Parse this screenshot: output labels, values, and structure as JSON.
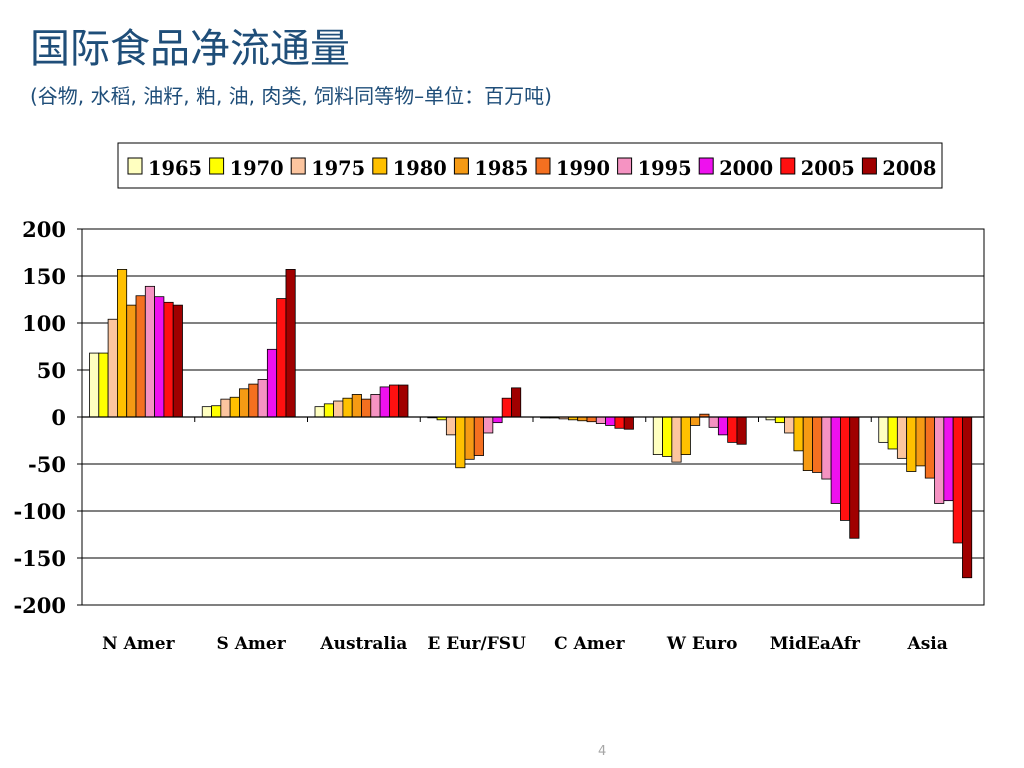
{
  "slide": {
    "title": "国际食品净流通量",
    "subtitle": "(谷物, 水稻, 油籽, 粕, 油, 肉类, 饲料同等物–单位：百万吨)",
    "page_number": "4"
  },
  "chart_data": {
    "type": "bar",
    "title": "",
    "xlabel": "",
    "ylabel": "",
    "ylim": [
      -200,
      200
    ],
    "yticks": [
      200,
      150,
      100,
      50,
      0,
      -50,
      -100,
      -150,
      -200
    ],
    "grid": true,
    "legend_position": "top",
    "categories": [
      "N Amer",
      "S Amer",
      "Australia",
      "E Eur/FSU",
      "C Amer",
      "W Euro",
      "MidEaAfr",
      "Asia"
    ],
    "series": [
      {
        "name": "1965",
        "color": "#ffffc0",
        "values": [
          68,
          11,
          11,
          0,
          -1,
          -40,
          -3,
          -27
        ]
      },
      {
        "name": "1970",
        "color": "#ffff00",
        "values": [
          68,
          12,
          14,
          -3,
          -1,
          -42,
          -6,
          -34
        ]
      },
      {
        "name": "1975",
        "color": "#fcc59f",
        "values": [
          104,
          19,
          17,
          -19,
          -2,
          -48,
          -17,
          -44
        ]
      },
      {
        "name": "1980",
        "color": "#ffc000",
        "values": [
          157,
          21,
          20,
          -54,
          -3,
          -40,
          -36,
          -58
        ]
      },
      {
        "name": "1985",
        "color": "#f59a14",
        "values": [
          119,
          30,
          24,
          -45,
          -4,
          -9,
          -57,
          -52
        ]
      },
      {
        "name": "1990",
        "color": "#f47020",
        "values": [
          129,
          35,
          19,
          -41,
          -5,
          3,
          -59,
          -65
        ]
      },
      {
        "name": "1995",
        "color": "#f593c2",
        "values": [
          139,
          40,
          24,
          -17,
          -7,
          -11,
          -66,
          -92
        ]
      },
      {
        "name": "2000",
        "color": "#ee11ee",
        "values": [
          128,
          72,
          32,
          -6,
          -9,
          -19,
          -92,
          -89
        ]
      },
      {
        "name": "2005",
        "color": "#ff1010",
        "values": [
          122,
          126,
          34,
          20,
          -12,
          -27,
          -110,
          -134
        ]
      },
      {
        "name": "2008",
        "color": "#a00000",
        "values": [
          119,
          157,
          34,
          31,
          -13,
          -29,
          -129,
          -171
        ]
      }
    ]
  }
}
